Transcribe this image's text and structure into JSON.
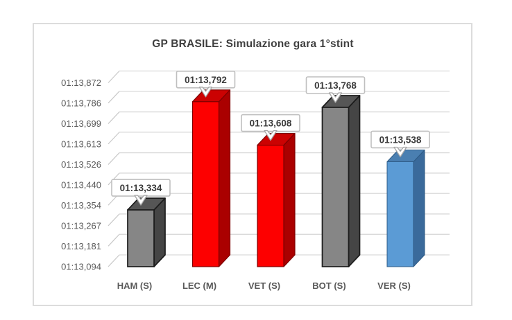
{
  "title": "GP BRASILE: Simulazione gara 1°stint",
  "chart_data": {
    "type": "bar",
    "style": "3d-clustered-column",
    "title": "GP BRASILE: Simulazione gara 1°stint",
    "xlabel": "",
    "ylabel": "",
    "grid": true,
    "legend": false,
    "categories": [
      "HAM (S)",
      "LEC (M)",
      "VET (S)",
      "BOT (S)",
      "VER (S)"
    ],
    "values_seconds": [
      73.334,
      73.792,
      73.608,
      73.768,
      73.538
    ],
    "data_labels": [
      "01:13,334",
      "01:13,792",
      "01:13,608",
      "01:13,768",
      "01:13,538"
    ],
    "bar_colors": [
      {
        "name": "gray",
        "front": "#868686",
        "top": "#565656",
        "side": "#454545",
        "outline": "#1c1c1c"
      },
      {
        "name": "red",
        "front": "#fd0000",
        "top": "#cb0202",
        "side": "#aa0000",
        "outline": "#7e0000"
      },
      {
        "name": "red",
        "front": "#fd0000",
        "top": "#cb0202",
        "side": "#aa0000",
        "outline": "#7e0000"
      },
      {
        "name": "gray",
        "front": "#868686",
        "top": "#565656",
        "side": "#454545",
        "outline": "#1c1c1c"
      },
      {
        "name": "blue",
        "front": "#5b9bd5",
        "top": "#4a7fb1",
        "side": "#3a6a9b",
        "outline": "#2e5b86"
      }
    ],
    "y_axis": {
      "tick_labels": [
        "01:13,872",
        "01:13,786",
        "01:13,699",
        "01:13,613",
        "01:13,526",
        "01:13,440",
        "01:13,354",
        "01:13,267",
        "01:13,181",
        "01:13,094"
      ],
      "tick_values_seconds": [
        73.872,
        73.786,
        73.699,
        73.613,
        73.526,
        73.44,
        73.354,
        73.267,
        73.181,
        73.094
      ],
      "min_seconds": 73.094,
      "max_seconds": 73.872
    }
  },
  "colors": {
    "background": "#ffffff",
    "chart_border": "#dcdcdc",
    "gridline": "#d9d9d9",
    "leader_line": "#c9c9c9",
    "axis_text": "#595959",
    "title_text": "#3f3f3f",
    "callout_fill": "#ffffff",
    "callout_border": "#bfbfbf",
    "callout_arrow_border": "#a6a6a6",
    "callout_text": "#3a3a3a"
  }
}
